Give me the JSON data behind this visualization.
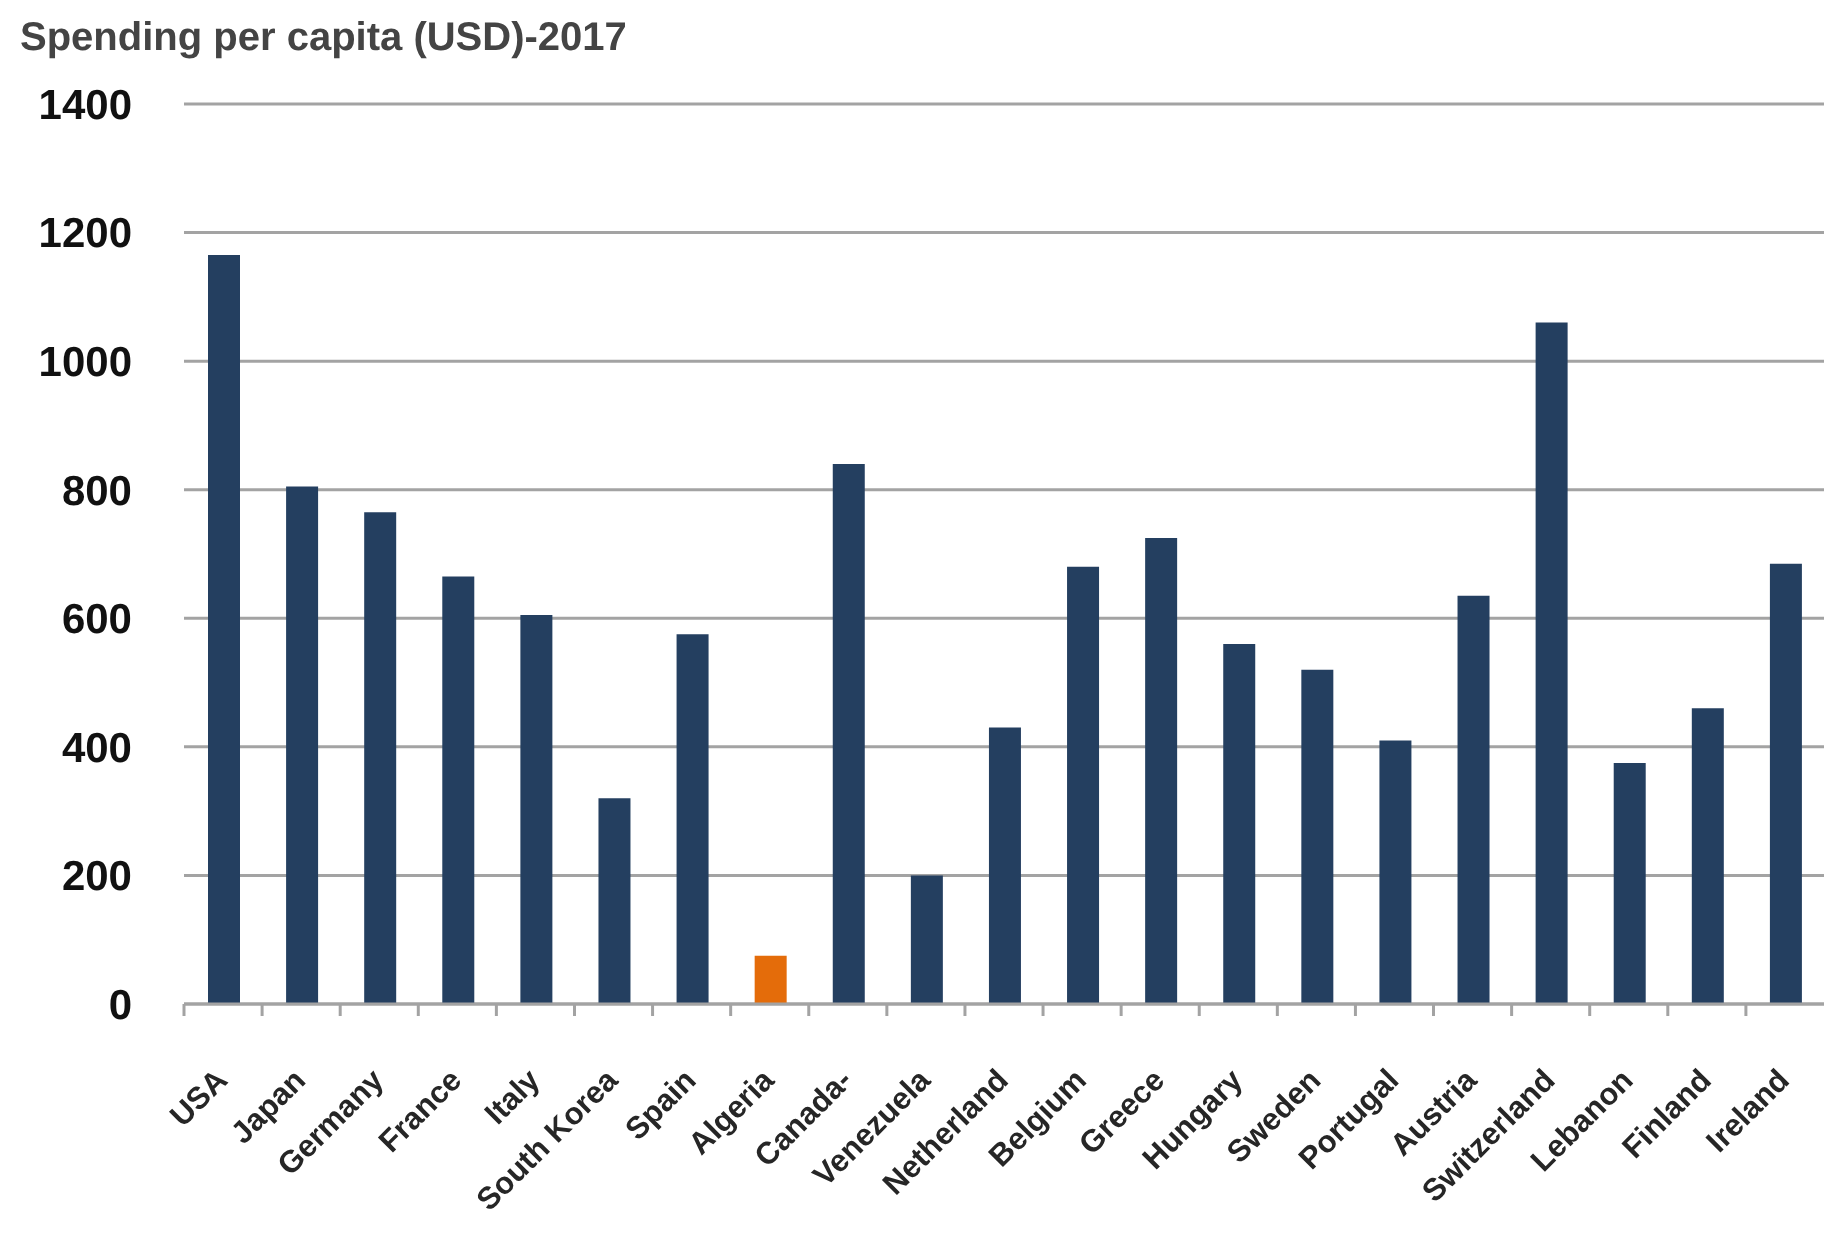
{
  "chart_data": {
    "type": "bar",
    "title": "Spending per capita (USD)-2017",
    "categories": [
      "USA",
      "Japan",
      "Germany",
      "France",
      "Italy",
      "South Korea",
      "Spain",
      "Algeria",
      "Canada-",
      "Venezuela",
      "Netherland",
      "Belgium",
      "Greece",
      "Hungary",
      "Sweden",
      "Portugal",
      "Austria",
      "Switzerland",
      "Lebanon",
      "Finland",
      "Ireland"
    ],
    "values": [
      1165,
      805,
      765,
      665,
      605,
      320,
      575,
      75,
      840,
      200,
      430,
      680,
      725,
      560,
      520,
      410,
      635,
      1060,
      375,
      460,
      685
    ],
    "colors": [
      "#243f60",
      "#243f60",
      "#243f60",
      "#243f60",
      "#243f60",
      "#243f60",
      "#243f60",
      "#e46c0a",
      "#243f60",
      "#243f60",
      "#243f60",
      "#243f60",
      "#243f60",
      "#243f60",
      "#243f60",
      "#243f60",
      "#243f60",
      "#243f60",
      "#243f60",
      "#243f60",
      "#243f60"
    ],
    "ylim": [
      0,
      1400
    ],
    "yticks": [
      0,
      200,
      400,
      600,
      800,
      1000,
      1200,
      1400
    ],
    "grid": "y"
  }
}
